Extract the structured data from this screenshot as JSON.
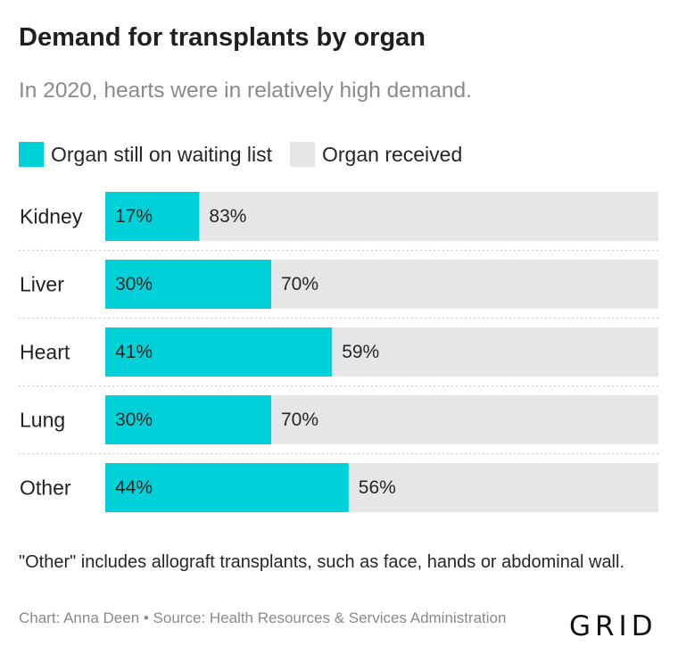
{
  "header": {
    "title": "Demand for transplants by organ",
    "subtitle": "In 2020, hearts were in relatively high demand."
  },
  "legend": [
    {
      "label": "Organ still on waiting list",
      "color": "#00d1d8"
    },
    {
      "label": "Organ received",
      "color": "#e6e6e6"
    }
  ],
  "chart_data": {
    "type": "bar",
    "orientation": "horizontal",
    "stacked": true,
    "categories": [
      "Kidney",
      "Liver",
      "Heart",
      "Lung",
      "Other"
    ],
    "series": [
      {
        "name": "Organ still on waiting list",
        "values": [
          17,
          30,
          41,
          30,
          44
        ],
        "labels": [
          "17%",
          "30%",
          "41%",
          "30%",
          "44%"
        ],
        "color": "#00d1d8"
      },
      {
        "name": "Organ received",
        "values": [
          83,
          70,
          59,
          70,
          56
        ],
        "labels": [
          "83%",
          "70%",
          "59%",
          "70%",
          "56%"
        ],
        "color": "#e6e6e6"
      }
    ],
    "xlim": [
      0,
      100
    ],
    "unit": "%",
    "title": "Demand for transplants by organ",
    "subtitle": "In 2020, hearts were in relatively high demand.",
    "legend_position": "top-left",
    "grid": false,
    "row_separators": "dotted"
  },
  "footer": {
    "note": "\"Other\" includes allograft transplants, such as face, hands or abdominal wall.",
    "source": "Chart: Anna Deen • Source: Health Resources & Services Administration",
    "logo": "GRID"
  }
}
